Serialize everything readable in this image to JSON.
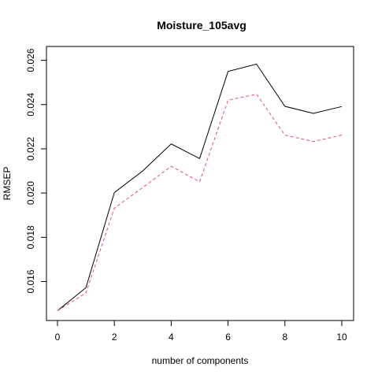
{
  "chart_data": {
    "type": "line",
    "title": "Moisture_105avg",
    "xlabel": "number of components",
    "ylabel": "RMSEP",
    "x": [
      0,
      1,
      2,
      3,
      4,
      5,
      6,
      7,
      8,
      9,
      10
    ],
    "xlim": [
      0,
      10
    ],
    "ylim": [
      0.0147,
      0.0262
    ],
    "xticks": [
      0,
      2,
      4,
      6,
      8,
      10
    ],
    "yticks": [
      0.016,
      0.018,
      0.02,
      0.022,
      0.024,
      0.026
    ],
    "ytick_labels": [
      "0.016",
      "0.018",
      "0.020",
      "0.022",
      "0.024",
      "0.026"
    ],
    "grid": false,
    "legend": "none",
    "series": [
      {
        "values": [
          0.01468,
          0.01572,
          0.02002,
          0.021,
          0.02222,
          0.02156,
          0.0255,
          0.02583,
          0.02392,
          0.0236,
          0.02391
        ],
        "color": "#000000",
        "dash": "solid"
      },
      {
        "values": [
          0.01468,
          0.01548,
          0.01932,
          0.02025,
          0.02121,
          0.02051,
          0.0242,
          0.02447,
          0.02262,
          0.02233,
          0.02262
        ],
        "color": "#DF536B",
        "dash": "dashed"
      }
    ]
  }
}
